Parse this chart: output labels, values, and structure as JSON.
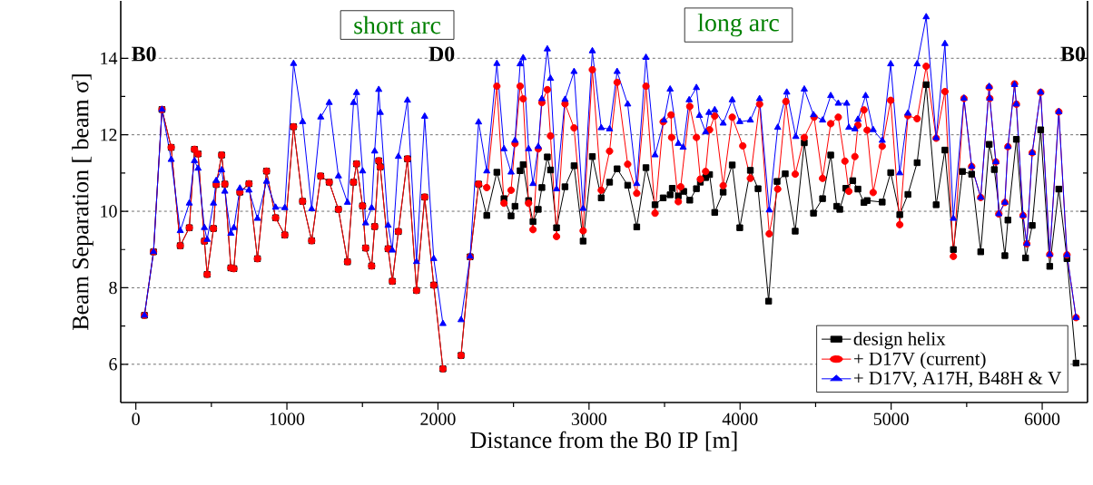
{
  "chart_data": {
    "type": "line",
    "xlabel": "Distance from the B0 IP [m]",
    "ylabel": "Beam Separation [ beam σ]",
    "xlim": [
      -100,
      6300
    ],
    "ylim": [
      5,
      15.5
    ],
    "xticks": [
      0,
      1000,
      2000,
      3000,
      4000,
      5000,
      6000
    ],
    "yticks": [
      6,
      8,
      10,
      12,
      14
    ],
    "grid": "y",
    "legend": "bottom right",
    "line_style": "solid",
    "annotations": [
      "B0",
      "D0",
      "B0",
      "short arc",
      "long arc"
    ],
    "series": [
      {
        "name": "design helix",
        "color": "#000000",
        "marker": "square",
        "x": [
          57,
          117,
          173,
          234,
          294,
          354,
          388,
          412,
          454,
          472,
          514,
          532,
          568,
          589,
          629,
          649,
          689,
          749,
          805,
          865,
          925,
          986,
          1044,
          1104,
          1164,
          1224,
          1280,
          1341,
          1401,
          1441,
          1461,
          1501,
          1521,
          1561,
          1581,
          1608,
          1618,
          1670,
          1698,
          1738,
          1798,
          1858,
          1912,
          1972,
          2033,
          2093,
          2153,
          2213,
          2269,
          2323,
          2390,
          2437,
          2484,
          2510,
          2544,
          2564,
          2600,
          2629,
          2664,
          2688,
          2724,
          2745,
          2785,
          2841,
          2901,
          2961,
          3022,
          3081,
          3136,
          3186,
          3256,
          3316,
          3377,
          3437,
          3491,
          3537,
          3551,
          3591,
          3627,
          3667,
          3711,
          3737,
          3772,
          3798,
          3832,
          3888,
          3948,
          3998,
          4068,
          4119,
          4189,
          4245,
          4299,
          4365,
          4425,
          4486,
          4546,
          4600,
          4640,
          4660,
          4700,
          4746,
          4780,
          4820,
          4841,
          4941,
          4997,
          5057,
          5111,
          5172,
          5232,
          5298,
          5356,
          5412,
          5472,
          5533,
          5593,
          5649,
          5683,
          5753,
          5773,
          5829,
          5890,
          5934,
          5990,
          6050,
          6110,
          6164,
          6224
        ],
        "values": [
          7.28,
          8.94,
          12.66,
          11.67,
          9.1,
          9.57,
          11.62,
          11.5,
          9.22,
          8.35,
          9.55,
          10.7,
          11.47,
          10.71,
          8.52,
          8.5,
          10.5,
          10.72,
          8.76,
          11.05,
          9.83,
          9.38,
          12.21,
          10.26,
          9.23,
          10.92,
          10.76,
          10.05,
          8.68,
          10.76,
          11.24,
          10.14,
          9.04,
          8.57,
          9.6,
          11.32,
          11.16,
          9.02,
          8.17,
          9.47,
          11.37,
          7.93,
          10.37,
          8.07,
          5.88,
          null,
          6.23,
          8.81,
          10.71,
          9.89,
          11.02,
          10.33,
          9.88,
          10.13,
          11.06,
          11.22,
          10.28,
          9.73,
          10.05,
          10.62,
          11.42,
          11.08,
          9.57,
          10.64,
          11.19,
          9.22,
          11.43,
          10.35,
          10.76,
          11.11,
          10.68,
          9.59,
          11.14,
          10.17,
          10.35,
          10.43,
          10.6,
          10.4,
          10.52,
          10.29,
          10.59,
          10.76,
          10.88,
          10.96,
          9.97,
          10.5,
          11.21,
          9.57,
          11.07,
          10.59,
          7.65,
          10.78,
          10.98,
          9.48,
          11.79,
          9.95,
          10.33,
          11.47,
          10.13,
          10.05,
          10.6,
          10.8,
          10.58,
          10.23,
          10.28,
          10.24,
          11.01,
          9.91,
          10.44,
          11.27,
          13.31,
          10.17,
          11.6,
          9.0,
          11.04,
          10.97,
          8.94,
          11.75,
          11.09,
          8.84,
          9.77,
          11.88,
          8.78,
          9.63,
          12.13,
          8.56,
          10.58,
          8.76,
          6.03
        ]
      },
      {
        "name": "+ D17V (current)",
        "color": "#ff0000",
        "marker": "circle",
        "x": [
          57,
          117,
          173,
          234,
          294,
          354,
          388,
          412,
          454,
          472,
          514,
          532,
          568,
          589,
          629,
          649,
          689,
          749,
          805,
          865,
          925,
          986,
          1044,
          1104,
          1164,
          1224,
          1280,
          1341,
          1401,
          1441,
          1461,
          1501,
          1521,
          1561,
          1581,
          1608,
          1618,
          1670,
          1698,
          1738,
          1798,
          1858,
          1912,
          1972,
          2033,
          2093,
          2153,
          2213,
          2269,
          2323,
          2390,
          2437,
          2484,
          2510,
          2544,
          2564,
          2600,
          2629,
          2664,
          2688,
          2724,
          2745,
          2785,
          2841,
          2901,
          2961,
          3022,
          3081,
          3136,
          3186,
          3256,
          3316,
          3377,
          3437,
          3491,
          3543,
          3547,
          3591,
          3607,
          3667,
          3711,
          3737,
          3772,
          3798,
          3832,
          3888,
          3948,
          4018,
          4068,
          4129,
          4193,
          4249,
          4303,
          4365,
          4425,
          4490,
          4546,
          4600,
          4650,
          4694,
          4720,
          4760,
          4780,
          4820,
          4841,
          4881,
          4941,
          4997,
          5057,
          5111,
          5172,
          5232,
          5298,
          5356,
          5412,
          5482,
          5533,
          5593,
          5649,
          5653,
          5693,
          5713,
          5753,
          5773,
          5817,
          5829,
          5873,
          5898,
          5934,
          5990,
          6050,
          6110,
          6164,
          6224
        ],
        "values": [
          7.28,
          8.94,
          12.66,
          11.67,
          9.1,
          9.57,
          11.62,
          11.5,
          9.22,
          8.35,
          9.55,
          10.7,
          11.47,
          10.71,
          8.52,
          8.5,
          10.5,
          10.72,
          8.76,
          11.05,
          9.83,
          9.38,
          12.21,
          10.26,
          9.23,
          10.92,
          10.76,
          10.05,
          8.68,
          10.76,
          11.24,
          10.14,
          9.04,
          8.57,
          9.6,
          11.32,
          11.16,
          9.02,
          8.17,
          9.47,
          11.37,
          7.93,
          10.37,
          8.07,
          5.88,
          null,
          6.23,
          8.81,
          10.71,
          10.62,
          13.27,
          10.21,
          10.55,
          11.77,
          13.27,
          12.94,
          10.21,
          9.52,
          11.63,
          12.84,
          13.18,
          11.97,
          9.34,
          12.81,
          12.18,
          9.49,
          13.7,
          10.55,
          11.57,
          13.37,
          11.23,
          10.47,
          13.27,
          9.95,
          12.34,
          12.52,
          11.93,
          10.25,
          10.64,
          12.74,
          11.93,
          10.84,
          11.04,
          12.13,
          12.49,
          10.67,
          12.46,
          11.71,
          10.86,
          12.8,
          9.41,
          10.58,
          12.87,
          10.97,
          11.93,
          12.46,
          10.86,
          12.29,
          12.46,
          11.31,
          10.52,
          11.43,
          12.25,
          12.65,
          12.12,
          10.49,
          11.7,
          12.9,
          9.65,
          12.5,
          12.42,
          13.79,
          11.91,
          13.13,
          8.82,
          12.95,
          11.17,
          10.36,
          13.24,
          12.95,
          11.29,
          9.93,
          10.23,
          11.69,
          13.33,
          12.8,
          9.89,
          9.15,
          11.53,
          13.11,
          8.87,
          12.6,
          8.86,
          7.22
        ]
      },
      {
        "name": "+ D17V, A17H, B48H & V",
        "color": "#0000ff",
        "marker": "triangle",
        "x": [
          57,
          117,
          173,
          234,
          294,
          354,
          388,
          412,
          454,
          472,
          514,
          532,
          568,
          589,
          629,
          649,
          689,
          749,
          805,
          865,
          925,
          986,
          1044,
          1104,
          1164,
          1224,
          1280,
          1341,
          1401,
          1441,
          1461,
          1501,
          1521,
          1561,
          1581,
          1608,
          1618,
          1670,
          1698,
          1738,
          1798,
          1858,
          1912,
          1972,
          2033,
          2093,
          2153,
          2213,
          2269,
          2323,
          2390,
          2437,
          2484,
          2510,
          2544,
          2564,
          2600,
          2629,
          2664,
          2688,
          2724,
          2745,
          2785,
          2841,
          2901,
          2961,
          3022,
          3081,
          3136,
          3186,
          3256,
          3316,
          3377,
          3437,
          3497,
          3537,
          3591,
          3623,
          3663,
          3711,
          3731,
          3772,
          3794,
          3832,
          3888,
          3948,
          3998,
          4068,
          4129,
          4193,
          4249,
          4309,
          4369,
          4425,
          4486,
          4546,
          4600,
          4650,
          4706,
          4720,
          4760,
          4780,
          4831,
          4881,
          4941,
          4997,
          5057,
          5111,
          5172,
          5232,
          5298,
          5356,
          5412,
          5482,
          5533,
          5593,
          5649,
          5653,
          5693,
          5713,
          5753,
          5773,
          5817,
          5829,
          5873,
          5898,
          5934,
          5990,
          6050,
          6110,
          6164,
          6224
        ],
        "values": [
          7.28,
          8.94,
          12.66,
          11.35,
          9.49,
          10.21,
          11.32,
          11.12,
          9.57,
          9.26,
          10.21,
          10.8,
          11.08,
          10.52,
          9.42,
          9.57,
          10.6,
          10.55,
          9.81,
          10.78,
          10.1,
          10.09,
          13.86,
          12.34,
          10.06,
          12.46,
          12.84,
          10.92,
          10.23,
          12.84,
          13.1,
          11.05,
          9.69,
          10.09,
          11.57,
          13.18,
          12.58,
          9.63,
          8.98,
          11.43,
          12.9,
          8.68,
          12.48,
          8.76,
          7.06,
          null,
          7.16,
          8.82,
          12.33,
          11.05,
          13.86,
          11.63,
          11.02,
          11.85,
          13.85,
          14.01,
          11.63,
          10.72,
          11.69,
          12.94,
          14.24,
          13.47,
          10.58,
          12.92,
          13.65,
          10.07,
          14.19,
          12.18,
          12.15,
          13.65,
          12.8,
          10.72,
          14.02,
          11.47,
          12.38,
          13.19,
          11.77,
          11.67,
          12.91,
          13.23,
          12.5,
          12.07,
          12.58,
          12.65,
          12.3,
          12.91,
          12.34,
          12.38,
          12.94,
          10.03,
          12.19,
          13.11,
          11.95,
          13.19,
          12.52,
          12.38,
          13.02,
          12.82,
          12.82,
          12.19,
          12.15,
          12.4,
          13.02,
          12.13,
          11.85,
          13.85,
          11.0,
          12.56,
          13.85,
          15.08,
          11.92,
          14.38,
          9.81,
          12.95,
          11.17,
          10.36,
          13.26,
          12.95,
          11.29,
          9.93,
          10.23,
          11.69,
          13.31,
          12.8,
          9.89,
          9.15,
          11.53,
          13.11,
          8.87,
          12.6,
          8.86,
          7.22
        ]
      }
    ]
  }
}
